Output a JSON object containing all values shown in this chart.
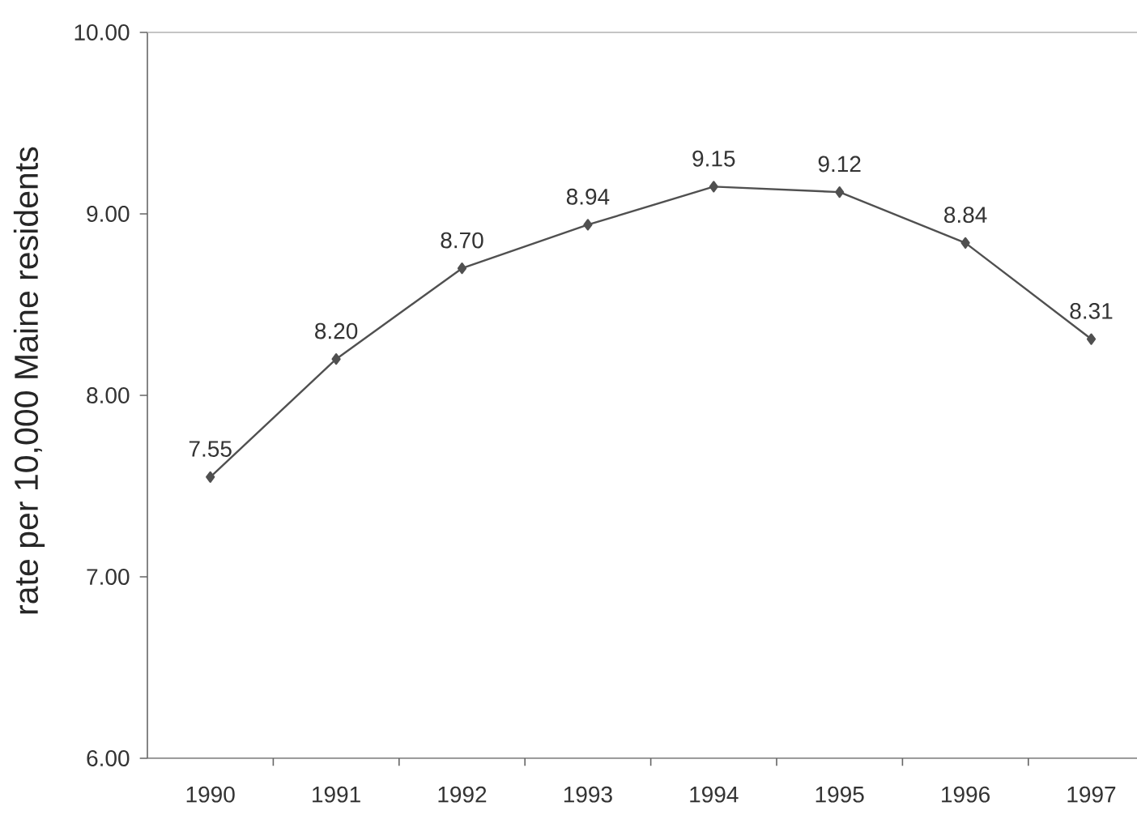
{
  "chart_data": {
    "type": "line",
    "ylabel": "rate per 10,000 Maine residents",
    "categories": [
      "1990",
      "1991",
      "1992",
      "1993",
      "1994",
      "1995",
      "1996",
      "1997"
    ],
    "series": [
      {
        "color": "#505050",
        "values": [
          7.55,
          8.2,
          8.7,
          8.94,
          9.15,
          9.12,
          8.84,
          8.31
        ],
        "value_labels": [
          "7.55",
          "8.20",
          "8.70",
          "8.94",
          "9.15",
          "9.12",
          "8.84",
          "8.31"
        ]
      }
    ],
    "ylim": [
      6,
      10
    ],
    "yticks": [
      {
        "value": 6,
        "label": "6.00"
      },
      {
        "value": 7,
        "label": "7.00"
      },
      {
        "value": 8,
        "label": "8.00"
      },
      {
        "value": 9,
        "label": "9.00"
      },
      {
        "value": 10,
        "label": "10.00"
      }
    ],
    "marker": "diamond",
    "line_style": "solid"
  }
}
